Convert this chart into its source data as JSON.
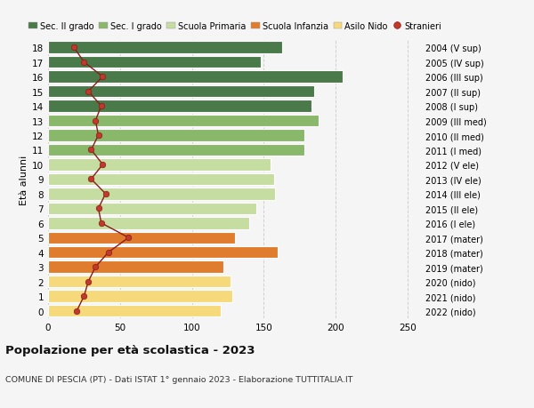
{
  "ages": [
    0,
    1,
    2,
    3,
    4,
    5,
    6,
    7,
    8,
    9,
    10,
    11,
    12,
    13,
    14,
    15,
    16,
    17,
    18
  ],
  "bar_values": [
    120,
    128,
    127,
    122,
    160,
    130,
    140,
    145,
    158,
    157,
    155,
    178,
    178,
    188,
    183,
    185,
    205,
    148,
    163
  ],
  "stranieri_values": [
    20,
    25,
    28,
    33,
    42,
    56,
    37,
    35,
    40,
    30,
    38,
    30,
    35,
    33,
    37,
    28,
    38,
    25,
    18
  ],
  "right_labels": [
    "2022 (nido)",
    "2021 (nido)",
    "2020 (nido)",
    "2019 (mater)",
    "2018 (mater)",
    "2017 (mater)",
    "2016 (I ele)",
    "2015 (II ele)",
    "2014 (III ele)",
    "2013 (IV ele)",
    "2012 (V ele)",
    "2011 (I med)",
    "2010 (II med)",
    "2009 (III med)",
    "2008 (I sup)",
    "2007 (II sup)",
    "2006 (III sup)",
    "2005 (IV sup)",
    "2004 (V sup)"
  ],
  "bar_colors": [
    "#f5d97a",
    "#f5d97a",
    "#f5d97a",
    "#e07c2e",
    "#e07c2e",
    "#e07c2e",
    "#c5dda0",
    "#c5dda0",
    "#c5dda0",
    "#c5dda0",
    "#c5dda0",
    "#8ab86a",
    "#8ab86a",
    "#8ab86a",
    "#4a7a4a",
    "#4a7a4a",
    "#4a7a4a",
    "#4a7a4a",
    "#4a7a4a"
  ],
  "legend_colors": [
    "#4a7a4a",
    "#8ab86a",
    "#c5dda0",
    "#e07c2e",
    "#f5d97a"
  ],
  "legend_labels": [
    "Sec. II grado",
    "Sec. I grado",
    "Scuola Primaria",
    "Scuola Infanzia",
    "Asilo Nido"
  ],
  "stranieri_color": "#c0392b",
  "stranieri_line_color": "#8b1a1a",
  "xlabel": "",
  "ylabel_left": "Età alunni",
  "title_bold": "Popolazione per età scolastica - 2023",
  "subtitle": "COMUNE DI PESCIA (PT) - Dati ISTAT 1° gennaio 2023 - Elaborazione TUTTITALIA.IT",
  "xlim": [
    0,
    260
  ],
  "background_color": "#f5f5f5",
  "grid_color": "#d0d0d0"
}
